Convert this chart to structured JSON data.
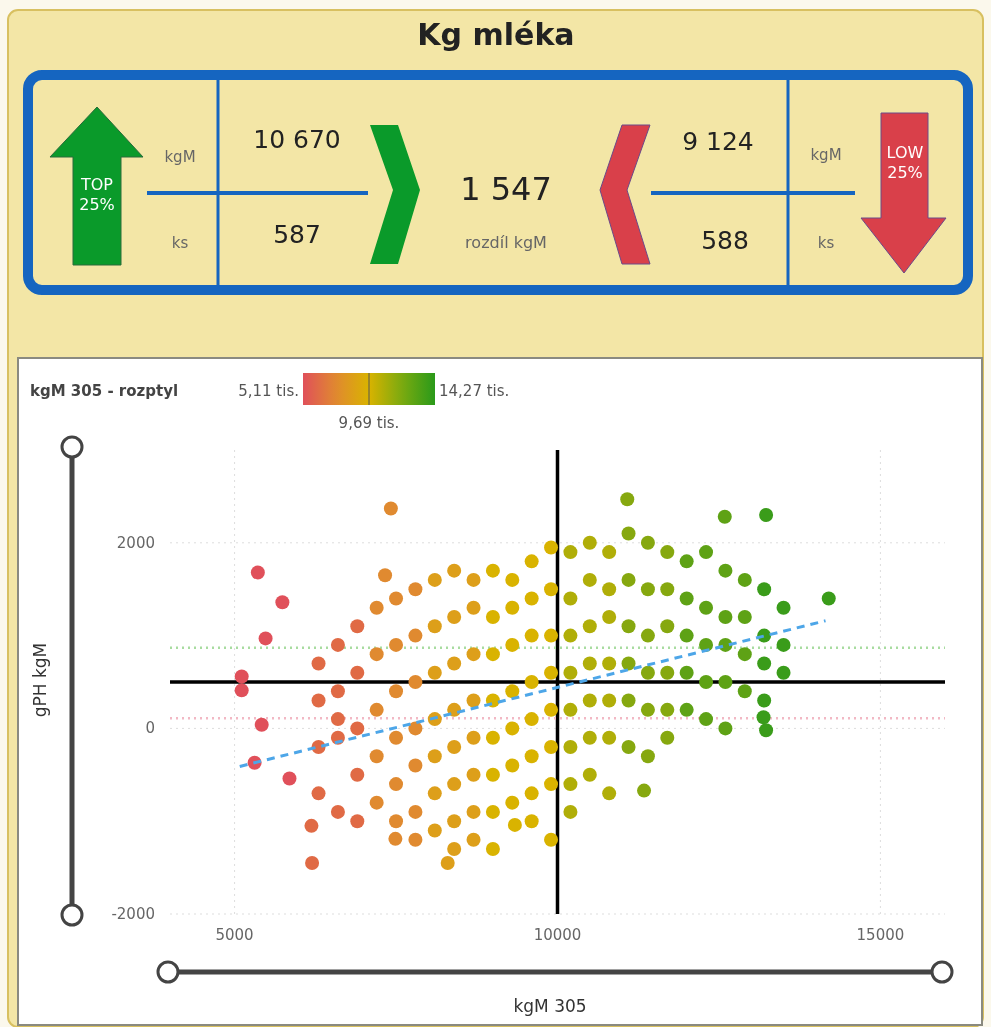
{
  "chart_data": [
    {
      "type": "other",
      "title": "Kg mléka",
      "annotations": [
        "TOP 25%",
        "kgM",
        "ks",
        "10 670",
        "587",
        "1 547",
        "rozdíl kgM",
        "9 124",
        "588",
        "kgM",
        "ks",
        "LOW 25%"
      ]
    },
    {
      "type": "scatter",
      "xlabel": "kgM 305",
      "ylabel": "gPH kgM",
      "xlim": [
        4000,
        16000
      ],
      "ylim": [
        -2000,
        3000
      ],
      "xticks": [
        5000,
        10000,
        15000
      ],
      "yticks": [
        -2000,
        0,
        2000
      ],
      "grid": true,
      "marker": "circle",
      "annotations": [
        "kgM 305 - rozptyl",
        "5,11 tis.",
        "9,69 tis.",
        "14,27 tis."
      ],
      "ref_lines": [
        {
          "axis": "x",
          "value": 10000,
          "color": "#000000",
          "line_style": "solid"
        },
        {
          "axis": "y",
          "value": 500,
          "color": "#000000",
          "line_style": "solid"
        },
        {
          "axis": "y",
          "value": 870,
          "color": "#a8dca0",
          "line_style": "dotted"
        },
        {
          "axis": "y",
          "value": 110,
          "color": "#f2b8c4",
          "line_style": "dotted"
        }
      ],
      "series": [
        {
          "type": "scatter",
          "x": [
            5360,
            5740,
            5480,
            5110,
            5110,
            5420,
            5310,
            5850,
            6200,
            6190,
            7420,
            7330,
            11080,
            13230,
            12590,
            14200,
            13230,
            13190,
            8300,
            7490,
            9340,
            11340,
            6300,
            6300,
            6300,
            6300,
            6600,
            6600,
            6600,
            6600,
            6600,
            6900,
            6900,
            6900,
            6900,
            6900,
            7200,
            7200,
            7200,
            7200,
            7200,
            7500,
            7500,
            7500,
            7500,
            7500,
            7500,
            7800,
            7800,
            7800,
            7800,
            7800,
            7800,
            7800,
            8100,
            8100,
            8100,
            8100,
            8100,
            8100,
            8100,
            8400,
            8400,
            8400,
            8400,
            8400,
            8400,
            8400,
            8400,
            8700,
            8700,
            8700,
            8700,
            8700,
            8700,
            8700,
            8700,
            9000,
            9000,
            9000,
            9000,
            9000,
            9000,
            9000,
            9000,
            9300,
            9300,
            9300,
            9300,
            9300,
            9300,
            9300,
            9600,
            9600,
            9600,
            9600,
            9600,
            9600,
            9600,
            9600,
            9900,
            9900,
            9900,
            9900,
            9900,
            9900,
            9900,
            9900,
            10200,
            10200,
            10200,
            10200,
            10200,
            10200,
            10200,
            10200,
            10500,
            10500,
            10500,
            10500,
            10500,
            10500,
            10500,
            10800,
            10800,
            10800,
            10800,
            10800,
            10800,
            10800,
            11100,
            11100,
            11100,
            11100,
            11100,
            11100,
            11400,
            11400,
            11400,
            11400,
            11400,
            11400,
            11700,
            11700,
            11700,
            11700,
            11700,
            11700,
            12000,
            12000,
            12000,
            12000,
            12000,
            12300,
            12300,
            12300,
            12300,
            12300,
            12600,
            12600,
            12600,
            12600,
            12600,
            12900,
            12900,
            12900,
            12900,
            13200,
            13200,
            13200,
            13200,
            13500,
            13500,
            13500
          ],
          "values": [
            1680,
            1360,
            970,
            560,
            410,
            40,
            -370,
            -540,
            -1450,
            -1050,
            2370,
            1650,
            2470,
            2300,
            2280,
            1400,
            -20,
            120,
            -1450,
            -1190,
            -1040,
            -670,
            700,
            300,
            -200,
            -700,
            900,
            400,
            -100,
            -900,
            100,
            1100,
            600,
            0,
            -500,
            -1000,
            1300,
            800,
            200,
            -300,
            -800,
            1400,
            900,
            400,
            -100,
            -600,
            -1000,
            1500,
            1000,
            500,
            0,
            -400,
            -900,
            -1200,
            1600,
            1100,
            600,
            100,
            -300,
            -700,
            -1100,
            1700,
            1200,
            700,
            200,
            -200,
            -600,
            -1000,
            -1300,
            1600,
            1300,
            800,
            300,
            -100,
            -500,
            -900,
            -1200,
            1700,
            1200,
            800,
            300,
            -100,
            -500,
            -900,
            -1300,
            1600,
            1300,
            900,
            400,
            0,
            -400,
            -800,
            1800,
            1400,
            1000,
            500,
            100,
            -300,
            -700,
            -1000,
            1950,
            1500,
            1000,
            600,
            200,
            -200,
            -600,
            -1200,
            1900,
            1400,
            1000,
            600,
            200,
            -200,
            -600,
            -900,
            2000,
            1600,
            1100,
            700,
            300,
            -100,
            -500,
            1900,
            1500,
            1200,
            700,
            300,
            -100,
            -700,
            2100,
            1600,
            1100,
            700,
            300,
            -200,
            2000,
            1500,
            1000,
            600,
            200,
            -300,
            1900,
            1500,
            1100,
            600,
            200,
            -100,
            1800,
            1400,
            1000,
            600,
            200,
            1900,
            1300,
            900,
            500,
            100,
            1700,
            1200,
            900,
            500,
            0,
            1600,
            1200,
            800,
            400,
            1500,
            1000,
            700,
            300,
            1300,
            900,
            600
          ],
          "colors": [
            "#e0505a",
            "#e0505a",
            "#e0505a",
            "#e0505a",
            "#e0505a",
            "#e0505a",
            "#e0505a",
            "#e0505a",
            "#e06a45",
            "#e06a45",
            "#e08a30",
            "#e08a30",
            "#86a80f",
            "#3a9c1a",
            "#5ea215",
            "#3a9c1a",
            "#3a9c1a",
            "#3a9c1a",
            "#dd9f1a",
            "#e08a30",
            "#d9b300",
            "#86a80f",
            "#e06a45",
            "#e06a45",
            "#e06a45",
            "#e06a45",
            "#e06a45",
            "#e06a45",
            "#e06a45",
            "#e06a45",
            "#e06a45",
            "#e06a45",
            "#e06a45",
            "#e06a45",
            "#e06a45",
            "#e06a45",
            "#e08a30",
            "#e08a30",
            "#e08a30",
            "#e08a30",
            "#e08a30",
            "#e08a30",
            "#e08a30",
            "#e08a30",
            "#e08a30",
            "#e08a30",
            "#e08a30",
            "#e08a30",
            "#e08a30",
            "#e08a30",
            "#e08a30",
            "#e08a30",
            "#e08a30",
            "#e08a30",
            "#dd9f1a",
            "#dd9f1a",
            "#dd9f1a",
            "#dd9f1a",
            "#dd9f1a",
            "#dd9f1a",
            "#dd9f1a",
            "#dd9f1a",
            "#dd9f1a",
            "#dd9f1a",
            "#dd9f1a",
            "#dd9f1a",
            "#dd9f1a",
            "#dd9f1a",
            "#dd9f1a",
            "#dd9f1a",
            "#dd9f1a",
            "#dd9f1a",
            "#dd9f1a",
            "#dd9f1a",
            "#dd9f1a",
            "#dd9f1a",
            "#dd9f1a",
            "#d9b300",
            "#d9b300",
            "#d9b300",
            "#d9b300",
            "#d9b300",
            "#d9b300",
            "#d9b300",
            "#d9b300",
            "#d9b300",
            "#d9b300",
            "#d9b300",
            "#d9b300",
            "#d9b300",
            "#d9b300",
            "#d9b300",
            "#d9b300",
            "#d9b300",
            "#d9b300",
            "#d9b300",
            "#d9b300",
            "#d9b300",
            "#d9b300",
            "#d9b300",
            "#d9b300",
            "#d9b300",
            "#d9b300",
            "#d9b300",
            "#d9b300",
            "#d9b300",
            "#d9b300",
            "#d9b300",
            "#b0ae08",
            "#b0ae08",
            "#b0ae08",
            "#b0ae08",
            "#b0ae08",
            "#b0ae08",
            "#b0ae08",
            "#b0ae08",
            "#b0ae08",
            "#b0ae08",
            "#b0ae08",
            "#b0ae08",
            "#b0ae08",
            "#b0ae08",
            "#b0ae08",
            "#b0ae08",
            "#b0ae08",
            "#b0ae08",
            "#b0ae08",
            "#b0ae08",
            "#b0ae08",
            "#b0ae08",
            "#86a80f",
            "#86a80f",
            "#86a80f",
            "#86a80f",
            "#86a80f",
            "#86a80f",
            "#86a80f",
            "#86a80f",
            "#86a80f",
            "#86a80f",
            "#86a80f",
            "#86a80f",
            "#86a80f",
            "#86a80f",
            "#86a80f",
            "#86a80f",
            "#86a80f",
            "#86a80f",
            "#5ea215",
            "#5ea215",
            "#5ea215",
            "#5ea215",
            "#5ea215",
            "#5ea215",
            "#5ea215",
            "#5ea215",
            "#5ea215",
            "#5ea215",
            "#5ea215",
            "#5ea215",
            "#5ea215",
            "#5ea215",
            "#5ea215",
            "#5ea215",
            "#5ea215",
            "#5ea215",
            "#5ea215",
            "#3a9c1a",
            "#3a9c1a",
            "#3a9c1a",
            "#3a9c1a",
            "#3a9c1a",
            "#3a9c1a",
            "#3a9c1a"
          ]
        },
        {
          "type": "line",
          "color": "#4da6e8",
          "line_style": "dashed",
          "marker": "none",
          "x": [
            5080,
            14150
          ],
          "values": [
            -410,
            1160
          ]
        }
      ]
    }
  ]
}
